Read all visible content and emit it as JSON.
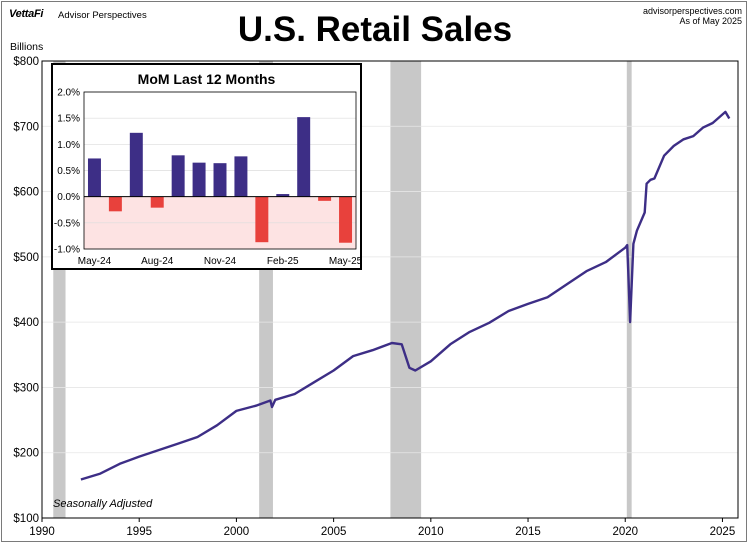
{
  "header": {
    "logo": "VettaFi",
    "brand": "Advisor Perspectives",
    "site": "advisorperspectives.com",
    "as_of": "As of May 2025"
  },
  "colors": {
    "line": "#3d2e86",
    "recession": "#c8c8c8",
    "positive_bar": "#3d2e86",
    "negative_bar": "#e8413c",
    "negative_zone": "#fde3e3"
  },
  "chart_data": [
    {
      "type": "line",
      "title": "U.S. Retail Sales",
      "ylabel": "Billions",
      "xlim": [
        1990,
        2025.8
      ],
      "ylim": [
        100,
        800
      ],
      "xticks": [
        1990,
        1995,
        2000,
        2005,
        2010,
        2015,
        2020,
        2025
      ],
      "yticks": [
        100,
        200,
        300,
        400,
        500,
        600,
        700,
        800
      ],
      "ytick_labels": [
        "$100",
        "$200",
        "$300",
        "$400",
        "$500",
        "$600",
        "$700",
        "$800"
      ],
      "annotation": "Seasonally Adjusted",
      "recessions": [
        [
          1990.58,
          1991.21
        ],
        [
          2001.17,
          2001.88
        ],
        [
          2007.92,
          2009.5
        ],
        [
          2020.08,
          2020.33
        ]
      ],
      "series": [
        {
          "name": "Retail Sales",
          "points": [
            [
              1992.0,
              159
            ],
            [
              1993.0,
              168
            ],
            [
              1994.0,
              183
            ],
            [
              1995.0,
              194
            ],
            [
              1996.0,
              204
            ],
            [
              1997.0,
              214
            ],
            [
              1998.0,
              224
            ],
            [
              1999.0,
              242
            ],
            [
              2000.0,
              264
            ],
            [
              2001.0,
              272
            ],
            [
              2001.75,
              280
            ],
            [
              2001.83,
              270
            ],
            [
              2002.0,
              281
            ],
            [
              2003.0,
              290
            ],
            [
              2004.0,
              308
            ],
            [
              2005.0,
              326
            ],
            [
              2006.0,
              348
            ],
            [
              2007.0,
              357
            ],
            [
              2008.0,
              368
            ],
            [
              2008.5,
              366
            ],
            [
              2008.9,
              330
            ],
            [
              2009.2,
              326
            ],
            [
              2010.0,
              340
            ],
            [
              2011.0,
              366
            ],
            [
              2012.0,
              385
            ],
            [
              2013.0,
              399
            ],
            [
              2014.0,
              417
            ],
            [
              2015.0,
              428
            ],
            [
              2016.0,
              438
            ],
            [
              2017.0,
              458
            ],
            [
              2018.0,
              478
            ],
            [
              2019.0,
              492
            ],
            [
              2020.0,
              514
            ],
            [
              2020.1,
              518
            ],
            [
              2020.15,
              480
            ],
            [
              2020.25,
              400
            ],
            [
              2020.42,
              520
            ],
            [
              2020.6,
              540
            ],
            [
              2021.0,
              568
            ],
            [
              2021.1,
              612
            ],
            [
              2021.3,
              618
            ],
            [
              2021.5,
              620
            ],
            [
              2022.0,
              655
            ],
            [
              2022.5,
              670
            ],
            [
              2023.0,
              680
            ],
            [
              2023.5,
              685
            ],
            [
              2024.0,
              698
            ],
            [
              2024.5,
              705
            ],
            [
              2025.0,
              718
            ],
            [
              2025.15,
              722
            ],
            [
              2025.35,
              712
            ]
          ]
        }
      ]
    },
    {
      "type": "bar",
      "title": "MoM Last 12 Months",
      "categories": [
        "May-24",
        "Jun-24",
        "Jul-24",
        "Aug-24",
        "Sep-24",
        "Oct-24",
        "Nov-24",
        "Dec-24",
        "Jan-25",
        "Feb-25",
        "Mar-25",
        "Apr-25",
        "May-25"
      ],
      "values": [
        0.73,
        -0.28,
        1.22,
        -0.21,
        0.79,
        0.65,
        0.64,
        0.77,
        -0.87,
        0.05,
        1.52,
        -0.08,
        -0.88
      ],
      "ylim": [
        -1.0,
        2.0
      ],
      "yticks": [
        -1.0,
        -0.5,
        0.0,
        0.5,
        1.0,
        1.5,
        2.0
      ],
      "ytick_labels": [
        "-1.0%",
        "-0.5%",
        "0.0%",
        "0.5%",
        "1.0%",
        "1.5%",
        "2.0%"
      ],
      "xtick_labels": [
        "May-24",
        "Aug-24",
        "Nov-24",
        "Feb-25",
        "May-25"
      ]
    }
  ]
}
